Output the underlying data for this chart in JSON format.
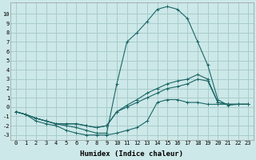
{
  "xlabel": "Humidex (Indice chaleur)",
  "background_color": "#cde8e8",
  "grid_color": "#a8cccc",
  "line_color": "#1a6666",
  "xlim": [
    -0.5,
    23.5
  ],
  "ylim": [
    -3.5,
    11.2
  ],
  "xticks": [
    0,
    1,
    2,
    3,
    4,
    5,
    6,
    7,
    8,
    9,
    10,
    11,
    12,
    13,
    14,
    15,
    16,
    17,
    18,
    19,
    20,
    21,
    22,
    23
  ],
  "yticks": [
    -3,
    -2,
    -1,
    0,
    1,
    2,
    3,
    4,
    5,
    6,
    7,
    8,
    9,
    10
  ],
  "line_big_x": [
    0,
    1,
    2,
    3,
    4,
    5,
    6,
    7,
    8,
    9,
    10,
    11,
    12,
    13,
    14,
    15,
    16,
    17,
    18,
    19,
    20,
    21,
    22,
    23
  ],
  "line_big_y": [
    -0.5,
    -0.8,
    -1.2,
    -1.5,
    -1.8,
    -2.0,
    -2.2,
    -2.5,
    -2.8,
    -2.8,
    2.5,
    7.0,
    8.0,
    9.2,
    10.5,
    10.8,
    10.5,
    9.5,
    7.0,
    4.5,
    0.8,
    0.2,
    0.3,
    0.3
  ],
  "line_upper_x": [
    0,
    1,
    2,
    3,
    4,
    5,
    6,
    7,
    8,
    9,
    10,
    11,
    12,
    13,
    14,
    15,
    16,
    17,
    18,
    19,
    20,
    21,
    22,
    23
  ],
  "line_upper_y": [
    -0.5,
    -0.8,
    -1.2,
    -1.5,
    -1.8,
    -1.8,
    -1.8,
    -2.0,
    -2.2,
    -2.0,
    -0.5,
    0.2,
    0.8,
    1.5,
    2.0,
    2.5,
    2.8,
    3.0,
    3.5,
    3.0,
    0.5,
    0.3,
    0.3,
    0.3
  ],
  "line_mid_x": [
    0,
    1,
    2,
    3,
    4,
    5,
    6,
    7,
    8,
    9,
    10,
    11,
    12,
    13,
    14,
    15,
    16,
    17,
    18,
    19,
    20,
    21,
    22,
    23
  ],
  "line_mid_y": [
    -0.5,
    -0.8,
    -1.2,
    -1.5,
    -1.8,
    -1.8,
    -1.8,
    -2.0,
    -2.2,
    -2.0,
    -0.5,
    0.0,
    0.5,
    1.0,
    1.5,
    2.0,
    2.2,
    2.5,
    3.0,
    2.8,
    0.5,
    0.3,
    0.3,
    0.3
  ],
  "line_low_x": [
    0,
    1,
    2,
    3,
    4,
    5,
    6,
    7,
    8,
    9,
    10,
    11,
    12,
    13,
    14,
    15,
    16,
    17,
    18,
    19,
    20,
    21,
    22,
    23
  ],
  "line_low_y": [
    -0.5,
    -0.8,
    -1.5,
    -1.8,
    -2.0,
    -2.5,
    -2.8,
    -3.0,
    -3.0,
    -3.0,
    -2.8,
    -2.5,
    -2.2,
    -1.5,
    0.5,
    0.8,
    0.8,
    0.5,
    0.5,
    0.3,
    0.3,
    0.3,
    0.3,
    0.3
  ]
}
